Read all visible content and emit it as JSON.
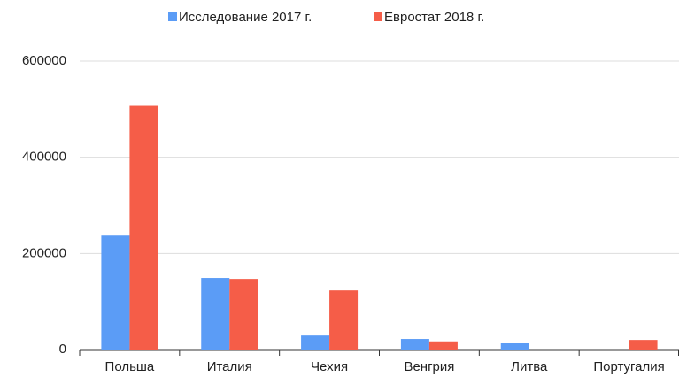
{
  "chart_data": {
    "type": "bar",
    "categories": [
      "Польша",
      "Италия",
      "Чехия",
      "Венгрия",
      "Литва",
      "Португалия"
    ],
    "series": [
      {
        "name": "Исследование 2017 г.",
        "color": "#5b9cf6",
        "values": [
          237000,
          149000,
          31000,
          22000,
          14000,
          null
        ]
      },
      {
        "name": "Евростат 2018 г.",
        "color": "#f55d48",
        "values": [
          507000,
          147000,
          123000,
          17000,
          null,
          20000
        ]
      }
    ],
    "ylim": [
      0,
      600000
    ],
    "yticks": [
      0,
      200000,
      400000,
      600000
    ],
    "grid": true,
    "legend": "top"
  }
}
